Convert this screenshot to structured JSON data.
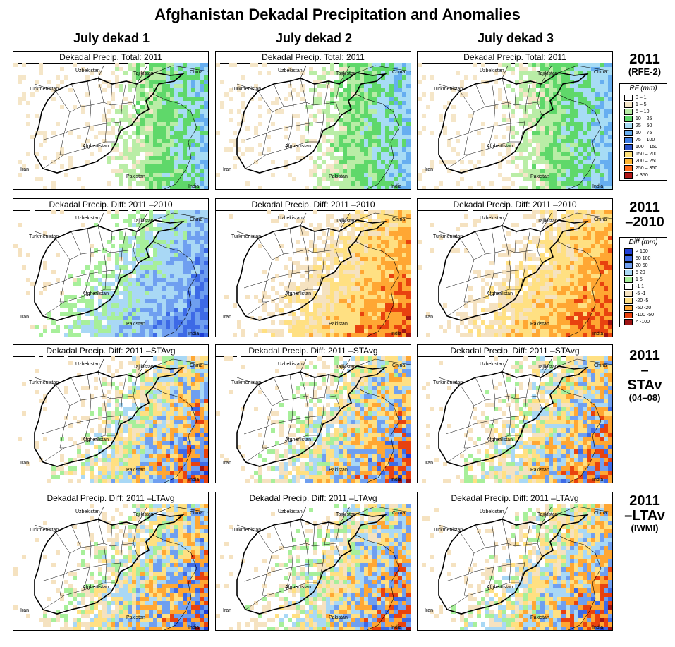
{
  "title": "Afghanistan Dekadal Precipitation and Anomalies",
  "columns": [
    "July dekad 1",
    "July dekad 2",
    "July dekad 3"
  ],
  "rows": [
    {
      "label": "2011",
      "sub": "(RFE-2)",
      "panel_title": "Dekadal Precip. Total: 2011",
      "scheme": "rf"
    },
    {
      "label": "2011 –2010",
      "sub": "",
      "panel_title": "Dekadal Precip. Diff: 2011 –2010",
      "scheme": "diff"
    },
    {
      "label": "2011 –STAv",
      "sub": "(04–08)",
      "panel_title": "Dekadal Precip. Diff: 2011 –STAvg",
      "scheme": "diff"
    },
    {
      "label": "2011 –LTAv",
      "sub": "(IWMI)",
      "panel_title": "Dekadal Precip. Diff: 2011 –LTAvg",
      "scheme": "diff"
    }
  ],
  "country_labels": [
    "Turkmenistan",
    "Uzbekistan",
    "Tajikistan",
    "China",
    "Afghanistan",
    "Iran",
    "Pakistan",
    "India"
  ],
  "legends": {
    "rf": {
      "title": "RF (mm)",
      "items": [
        {
          "label": "0 – 1",
          "color": "#ffffff"
        },
        {
          "label": "1 – 5",
          "color": "#f5e6c8"
        },
        {
          "label": "5 – 10",
          "color": "#b9eda6"
        },
        {
          "label": "10 – 25",
          "color": "#5fd86a"
        },
        {
          "label": "25 – 50",
          "color": "#a7dcf5"
        },
        {
          "label": "50 – 75",
          "color": "#66aef0"
        },
        {
          "label": "75 – 100",
          "color": "#3d7fe6"
        },
        {
          "label": "100 – 150",
          "color": "#2a52c9"
        },
        {
          "label": "150 – 200",
          "color": "#ffe27a"
        },
        {
          "label": "200 – 250",
          "color": "#ffb833"
        },
        {
          "label": "250 – 350",
          "color": "#ff6a1a"
        },
        {
          "label": "> 350",
          "color": "#b01717"
        }
      ]
    },
    "diff": {
      "title": "Diff (mm)",
      "items": [
        {
          "label": "> 100",
          "color": "#1f3fd6"
        },
        {
          "label": "50  100",
          "color": "#3d6ae6"
        },
        {
          "label": "20  50",
          "color": "#6f9ff0"
        },
        {
          "label": "5  20",
          "color": "#a9d8f5"
        },
        {
          "label": "1  5",
          "color": "#a7ef9a"
        },
        {
          "label": "-1  1",
          "color": "#ffffff"
        },
        {
          "label": "-5  -1",
          "color": "#f5e2c0"
        },
        {
          "label": "-20  -5",
          "color": "#ffe082"
        },
        {
          "label": "-50  -20",
          "color": "#ffa733"
        },
        {
          "label": "-100  -50",
          "color": "#e8420f"
        },
        {
          "label": "< -100",
          "color": "#9e1414"
        }
      ]
    }
  }
}
